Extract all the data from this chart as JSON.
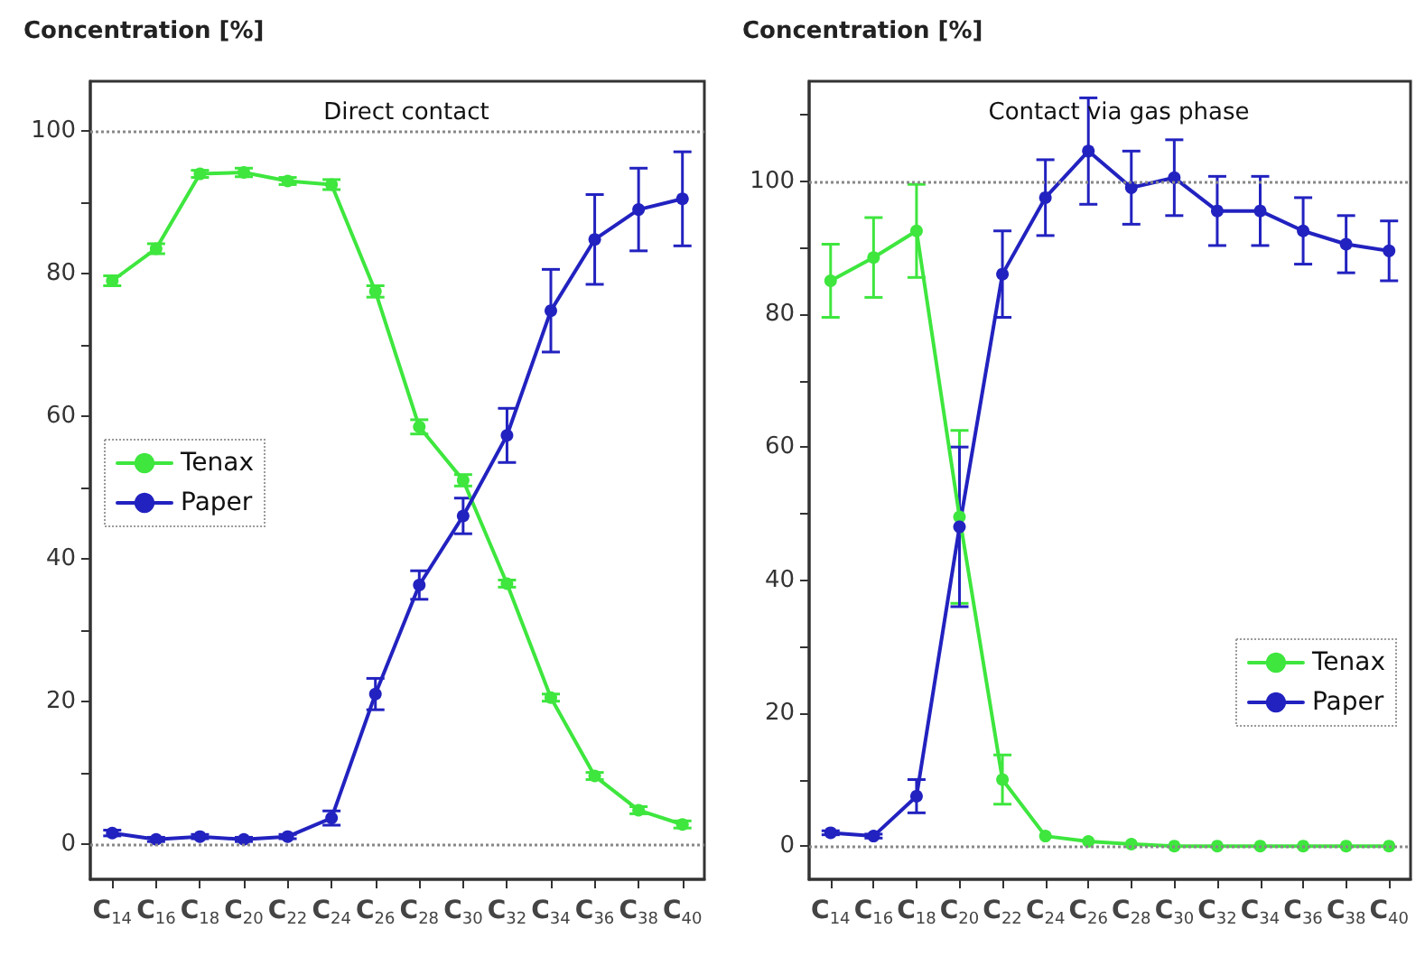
{
  "chart_data": [
    {
      "type": "line",
      "title": "Direct contact",
      "ylabel": "Concentration [%]",
      "categories": [
        "C$_{14}$",
        "C$_{16}$",
        "C$_{18}$",
        "C$_{20}$",
        "C$_{22}$",
        "C$_{24}$",
        "C$_{26}$",
        "C$_{28}$",
        "C$_{30}$",
        "C$_{32}$",
        "C$_{34}$",
        "C$_{36}$",
        "C$_{38}$",
        "C$_{40}$"
      ],
      "series": [
        {
          "name": "Tenax",
          "color": "#3ee63e",
          "values": [
            79,
            83.5,
            94,
            94.2,
            93,
            92.5,
            77.5,
            58.5,
            51,
            36.5,
            20.5,
            9.5,
            4.7,
            2.7
          ],
          "errors": [
            0.7,
            0.7,
            0.5,
            0.6,
            0.5,
            0.7,
            0.8,
            1,
            0.8,
            0.5,
            0.5,
            0.5,
            0.5,
            0.5
          ]
        },
        {
          "name": "Paper",
          "color": "#2222c0",
          "values": [
            1.5,
            0.6,
            1,
            0.6,
            1,
            3.6,
            21,
            36.3,
            46,
            57.3,
            74.8,
            84.8,
            89,
            90.5
          ],
          "errors": [
            0.4,
            0.3,
            0.3,
            0.3,
            0.3,
            1,
            2.2,
            2,
            2.5,
            3.8,
            5.8,
            6.3,
            5.8,
            6.6
          ]
        }
      ],
      "ylim": [
        -5,
        107
      ],
      "yticks": [
        0,
        {
          "value": 10,
          "label": null
        },
        20,
        {
          "value": 30,
          "label": null
        },
        40,
        {
          "value": 50,
          "label": null
        },
        60,
        {
          "value": 70,
          "label": null
        },
        80,
        {
          "value": 90,
          "label": null
        },
        100
      ],
      "ref_lines": [
        {
          "axis": "y",
          "value": 0,
          "label": null,
          "line_style": "dotted"
        },
        {
          "axis": "y",
          "value": 100,
          "label": null,
          "line_style": "dotted"
        }
      ],
      "legend": "left",
      "marker": "circle",
      "grid": false
    },
    {
      "type": "line",
      "title": "Contact via gas phase",
      "ylabel": "Concentration [%]",
      "categories": [
        "C$_{14}$",
        "C$_{16}$",
        "C$_{18}$",
        "C$_{20}$",
        "C$_{22}$",
        "C$_{24}$",
        "C$_{26}$",
        "C$_{28}$",
        "C$_{30}$",
        "C$_{32}$",
        "C$_{34}$",
        "C$_{36}$",
        "C$_{38}$",
        "C$_{40}$"
      ],
      "series": [
        {
          "name": "Tenax",
          "color": "#3ee63e",
          "values": [
            85,
            88.5,
            92.5,
            49.5,
            10,
            1.5,
            0.7,
            0.3,
            0,
            0,
            0,
            0,
            0,
            0
          ],
          "errors": [
            5.5,
            6,
            7,
            13,
            3.7,
            null,
            null,
            null,
            null,
            null,
            null,
            null,
            null,
            null
          ]
        },
        {
          "name": "Paper",
          "color": "#2222c0",
          "values": [
            2,
            1.5,
            7.5,
            48,
            86,
            97.5,
            104.5,
            99,
            100.5,
            95.5,
            95.5,
            92.5,
            90.5,
            89.5
          ],
          "errors": [
            0.3,
            0.3,
            2.5,
            12,
            6.5,
            5.7,
            8,
            5.5,
            5.7,
            5.2,
            5.2,
            5,
            4.3,
            4.5
          ]
        }
      ],
      "ylim": [
        -5,
        115
      ],
      "yticks": [
        0,
        {
          "value": 10,
          "label": null
        },
        20,
        {
          "value": 30,
          "label": null
        },
        40,
        {
          "value": 50,
          "label": null
        },
        60,
        {
          "value": 70,
          "label": null
        },
        80,
        {
          "value": 90,
          "label": null
        },
        100,
        {
          "value": 110,
          "label": null
        }
      ],
      "ref_lines": [
        {
          "axis": "y",
          "value": 0,
          "label": null,
          "line_style": "dotted"
        },
        {
          "axis": "y",
          "value": 100,
          "label": null,
          "line_style": "dotted"
        }
      ],
      "legend": "bottom right",
      "marker": "circle",
      "grid": false
    }
  ]
}
